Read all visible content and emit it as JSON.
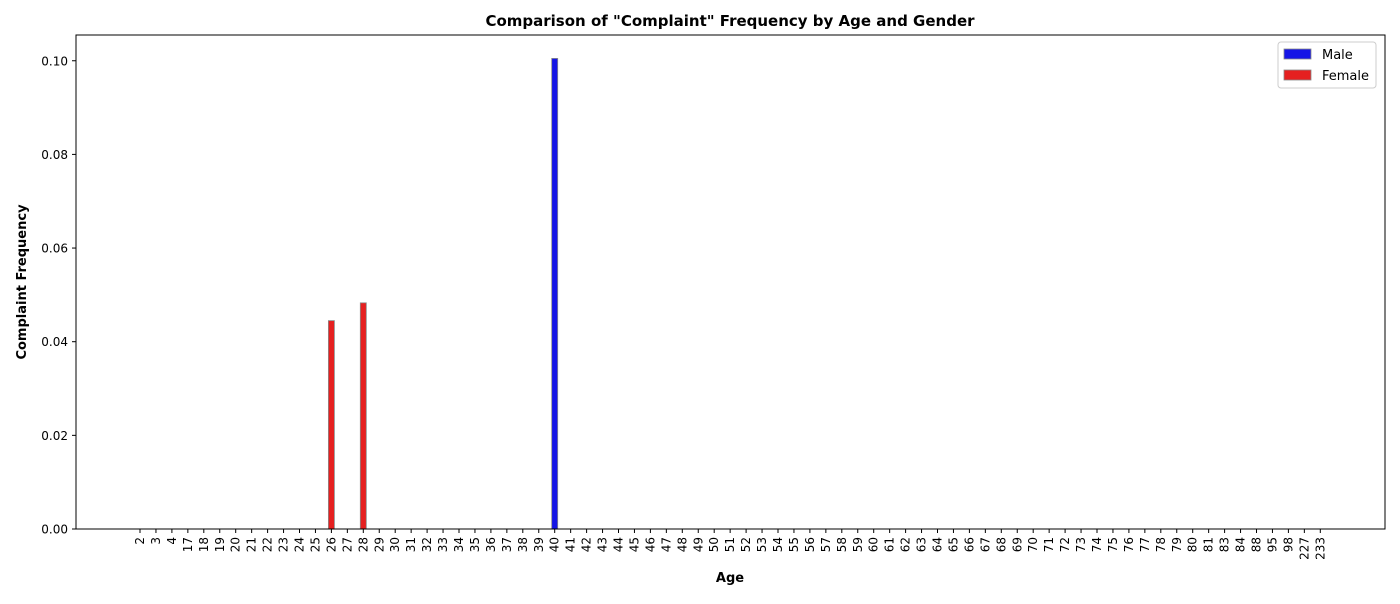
{
  "chart_data": {
    "type": "bar",
    "title": "Comparison of \"Complaint\" Frequency by Age and Gender",
    "xlabel": "Age",
    "ylabel": "Complaint Frequency",
    "ylim": [
      0,
      0.1055
    ],
    "yticks": [
      0.0,
      0.02,
      0.04,
      0.06,
      0.08,
      0.1
    ],
    "ytick_labels": [
      "0.00",
      "0.02",
      "0.04",
      "0.06",
      "0.08",
      "0.10"
    ],
    "grid": false,
    "legend_position": "top-right",
    "categories": [
      "2",
      "3",
      "4",
      "17",
      "18",
      "19",
      "20",
      "21",
      "22",
      "23",
      "24",
      "25",
      "26",
      "27",
      "28",
      "29",
      "30",
      "31",
      "32",
      "33",
      "34",
      "35",
      "36",
      "37",
      "38",
      "39",
      "40",
      "41",
      "42",
      "43",
      "44",
      "45",
      "46",
      "47",
      "48",
      "49",
      "50",
      "51",
      "52",
      "53",
      "54",
      "55",
      "56",
      "57",
      "58",
      "59",
      "60",
      "61",
      "62",
      "63",
      "64",
      "65",
      "66",
      "67",
      "68",
      "69",
      "70",
      "71",
      "72",
      "73",
      "74",
      "75",
      "76",
      "77",
      "78",
      "79",
      "80",
      "81",
      "83",
      "84",
      "88",
      "95",
      "98",
      "227",
      "233"
    ],
    "series": [
      {
        "name": "Male",
        "color": "#0000ff",
        "values": [
          0,
          0,
          0,
          0,
          0,
          0,
          0,
          0,
          0,
          0,
          0,
          0,
          0,
          0,
          0,
          0,
          0,
          0,
          0,
          0,
          0,
          0,
          0,
          0,
          0,
          0,
          0.1005,
          0,
          0,
          0,
          0,
          0,
          0,
          0,
          0,
          0,
          0,
          0,
          0,
          0,
          0,
          0,
          0,
          0,
          0,
          0,
          0,
          0,
          0,
          0,
          0,
          0,
          0,
          0,
          0,
          0,
          0,
          0,
          0,
          0,
          0,
          0,
          0,
          0,
          0,
          0,
          0,
          0,
          0,
          0,
          0,
          0,
          0,
          0,
          0
        ]
      },
      {
        "name": "Female",
        "color": "#ff0000",
        "values": [
          0,
          0,
          0,
          0,
          0,
          0,
          0,
          0,
          0,
          0,
          0,
          0,
          0.0445,
          0,
          0.0483,
          0,
          0,
          0,
          0,
          0,
          0,
          0,
          0,
          0,
          0,
          0,
          0,
          0,
          0,
          0,
          0,
          0,
          0,
          0,
          0,
          0,
          0,
          0,
          0,
          0,
          0,
          0,
          0,
          0,
          0,
          0,
          0,
          0,
          0,
          0,
          0,
          0,
          0,
          0,
          0,
          0,
          0,
          0,
          0,
          0,
          0,
          0,
          0,
          0,
          0,
          0,
          0,
          0,
          0,
          0,
          0,
          0,
          0,
          0,
          0
        ]
      }
    ]
  }
}
